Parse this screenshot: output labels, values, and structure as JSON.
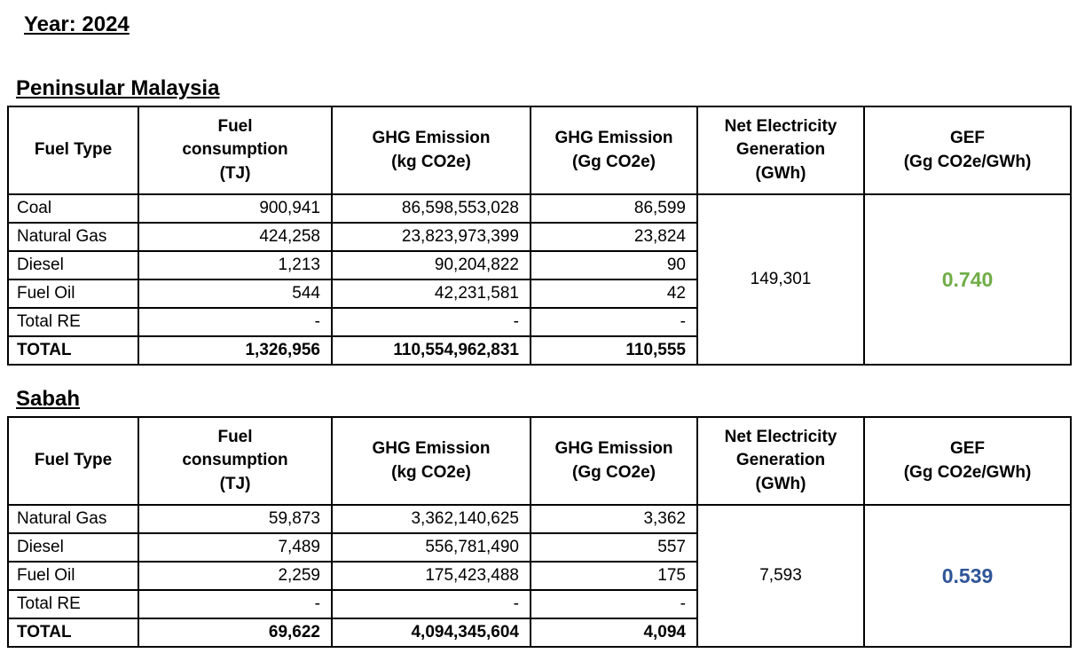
{
  "page": {
    "year_title": "Year: 2024"
  },
  "columns": {
    "fuel_type": "Fuel Type",
    "fuel_consumption": "Fuel\nconsumption\n(TJ)",
    "ghg_kg": "GHG Emission\n(kg CO2e)",
    "ghg_gg": "GHG Emission\n(Gg CO2e)",
    "net_gen": "Net Electricity\nGeneration\n(GWh)",
    "gef": "GEF\n(Gg CO2e/GWh)"
  },
  "tables": [
    {
      "title": "Peninsular Malaysia",
      "rows": [
        {
          "fuel": "Coal",
          "consumption": "900,941",
          "ghg_kg": "86,598,553,028",
          "ghg_gg": "86,599"
        },
        {
          "fuel": "Natural Gas",
          "consumption": "424,258",
          "ghg_kg": "23,823,973,399",
          "ghg_gg": "23,824"
        },
        {
          "fuel": "Diesel",
          "consumption": "1,213",
          "ghg_kg": "90,204,822",
          "ghg_gg": "90"
        },
        {
          "fuel": "Fuel Oil",
          "consumption": "544",
          "ghg_kg": "42,231,581",
          "ghg_gg": "42"
        },
        {
          "fuel": "Total RE",
          "consumption": "-",
          "ghg_kg": "-",
          "ghg_gg": "-"
        },
        {
          "fuel": "TOTAL",
          "consumption": "1,326,956",
          "ghg_kg": "110,554,962,831",
          "ghg_gg": "110,555"
        }
      ],
      "net_generation": "149,301",
      "gef_value": "0.740",
      "gef_color": "#70AD47"
    },
    {
      "title": "Sabah",
      "rows": [
        {
          "fuel": "Natural Gas",
          "consumption": "59,873",
          "ghg_kg": "3,362,140,625",
          "ghg_gg": "3,362"
        },
        {
          "fuel": "Diesel",
          "consumption": "7,489",
          "ghg_kg": "556,781,490",
          "ghg_gg": "557"
        },
        {
          "fuel": "Fuel Oil",
          "consumption": "2,259",
          "ghg_kg": "175,423,488",
          "ghg_gg": "175"
        },
        {
          "fuel": "Total RE",
          "consumption": "-",
          "ghg_kg": "-",
          "ghg_gg": "-"
        },
        {
          "fuel": "TOTAL",
          "consumption": "69,622",
          "ghg_kg": "4,094,345,604",
          "ghg_gg": "4,094"
        }
      ],
      "net_generation": "7,593",
      "gef_value": "0.539",
      "gef_color": "#2E5597"
    }
  ]
}
